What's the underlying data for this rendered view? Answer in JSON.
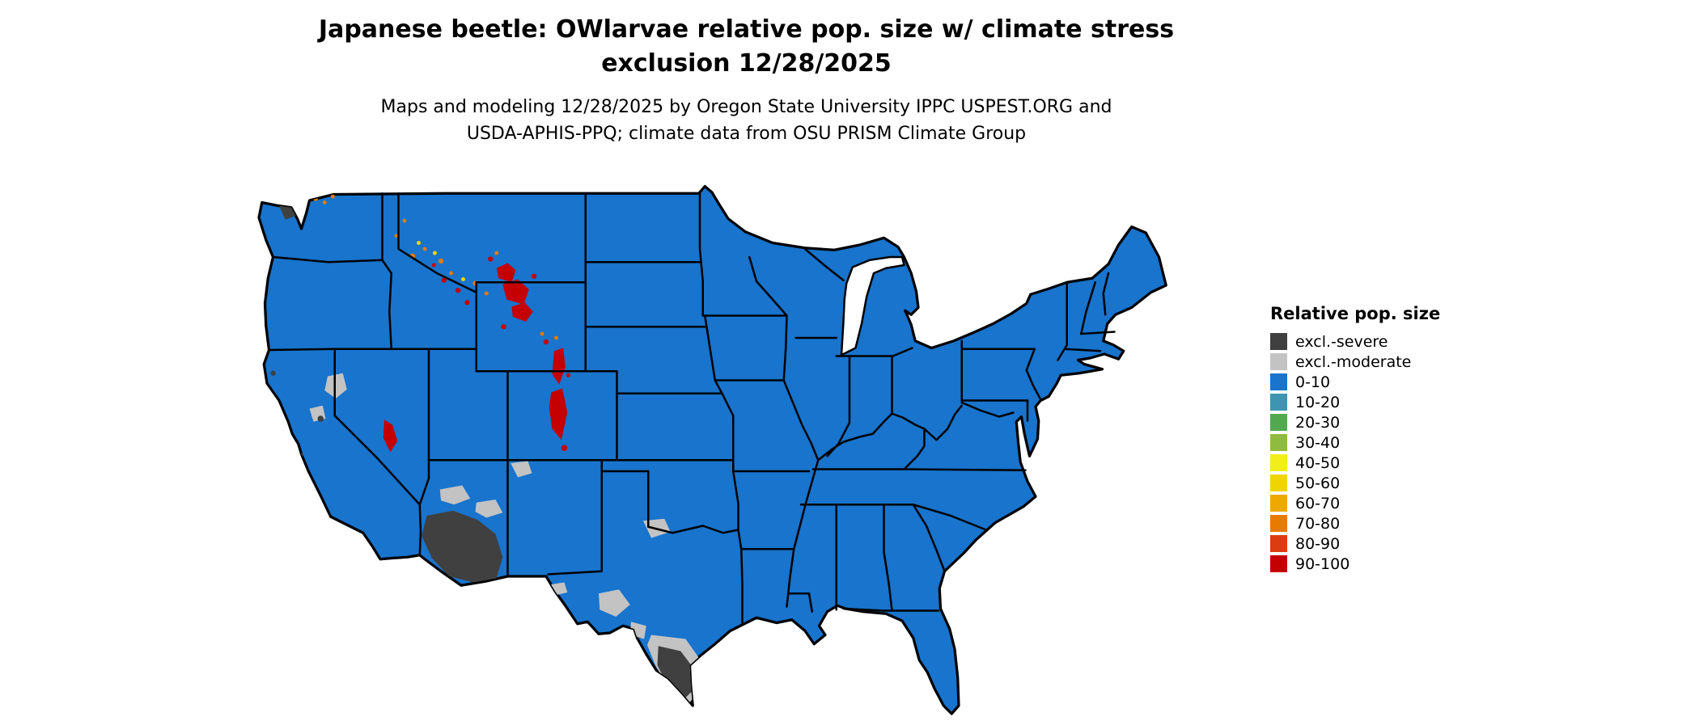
{
  "title": {
    "line1": "Japanese beetle: OWlarvae relative pop. size w/ climate stress",
    "line2": "exclusion 12/28/2025"
  },
  "subtitle": {
    "line1": "Maps and modeling 12/28/2025 by Oregon State University IPPC USPEST.ORG and",
    "line2": "USDA-APHIS-PPQ; climate data from OSU PRISM Climate Group"
  },
  "legend": {
    "title": "Relative pop. size",
    "items": [
      {
        "label": "excl.-severe",
        "color": "#404040"
      },
      {
        "label": "excl.-moderate",
        "color": "#c3c3c3"
      },
      {
        "label": "0-10",
        "color": "#1874cd"
      },
      {
        "label": "10-20",
        "color": "#3d95b2"
      },
      {
        "label": "20-30",
        "color": "#51a84f"
      },
      {
        "label": "30-40",
        "color": "#8fbc3f"
      },
      {
        "label": "40-50",
        "color": "#f2ee1b"
      },
      {
        "label": "50-60",
        "color": "#f0d400"
      },
      {
        "label": "60-70",
        "color": "#efa800"
      },
      {
        "label": "70-80",
        "color": "#e87a00"
      },
      {
        "label": "80-90",
        "color": "#dc3d10"
      },
      {
        "label": "90-100",
        "color": "#c40000"
      }
    ]
  },
  "colors": {
    "background": "#ffffff",
    "map_fill": "#1874cd",
    "map_border": "#000000",
    "excl_severe": "#404040",
    "excl_moderate": "#c3c3c3",
    "hotspot_red": "#c40000",
    "hotspot_orange": "#e87a00",
    "hotspot_yellow": "#f0d400"
  }
}
